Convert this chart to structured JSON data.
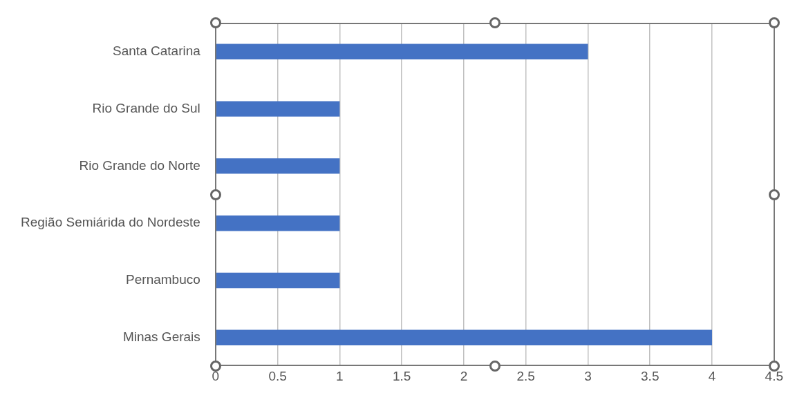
{
  "chart_data": {
    "type": "bar",
    "orientation": "horizontal",
    "categories": [
      "Santa Catarina",
      "Rio Grande do Sul",
      "Rio Grande do Norte",
      "Região Semiárida do Nordeste",
      "Pernambuco",
      "Minas Gerais"
    ],
    "values": [
      3,
      1,
      1,
      1,
      1,
      4
    ],
    "color": "#4472c4",
    "xlim": [
      0,
      4.5
    ],
    "xticks": [
      0,
      0.5,
      1,
      1.5,
      2,
      2.5,
      3,
      3.5,
      4,
      4.5
    ],
    "grid": "x",
    "legend": false
  }
}
